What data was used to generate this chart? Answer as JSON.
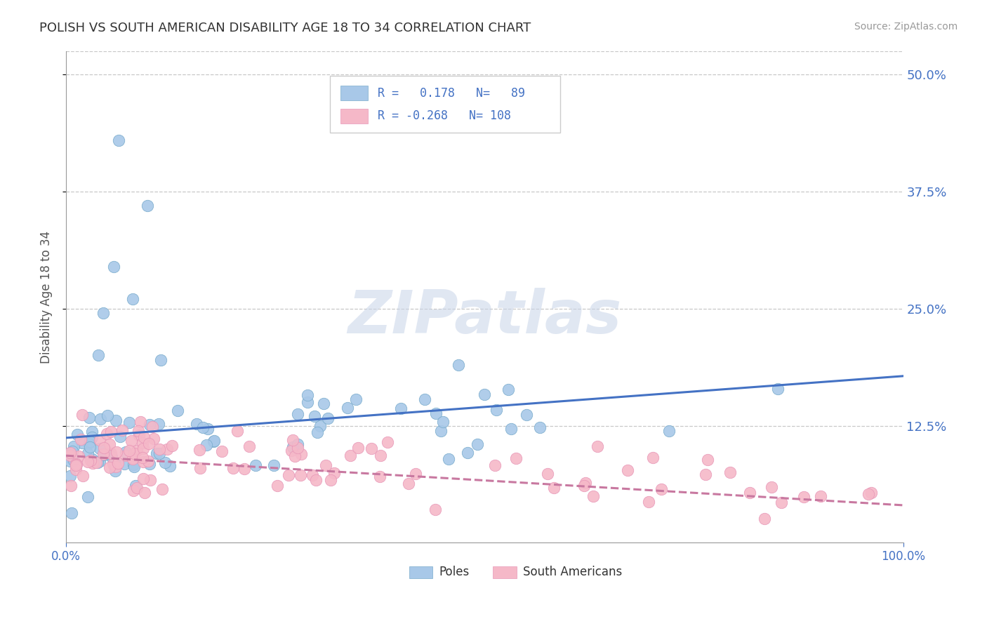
{
  "title": "POLISH VS SOUTH AMERICAN DISABILITY AGE 18 TO 34 CORRELATION CHART",
  "source": "Source: ZipAtlas.com",
  "ylabel": "Disability Age 18 to 34",
  "xlim": [
    0,
    1.0
  ],
  "ylim": [
    0,
    0.525
  ],
  "yticks": [
    0.125,
    0.25,
    0.375,
    0.5
  ],
  "ytick_labels": [
    "12.5%",
    "25.0%",
    "37.5%",
    "50.0%"
  ],
  "poles_R": 0.178,
  "poles_N": 89,
  "sa_R": -0.268,
  "sa_N": 108,
  "poles_color": "#a8c8e8",
  "sa_color": "#f5b8c8",
  "poles_line_color": "#4472c4",
  "sa_line_color": "#c878a0",
  "bg_color": "#ffffff",
  "watermark": "ZIPatlas",
  "title_fontsize": 13,
  "poles_line_start": 0.112,
  "poles_line_end": 0.178,
  "sa_line_start": 0.093,
  "sa_line_end": 0.04
}
